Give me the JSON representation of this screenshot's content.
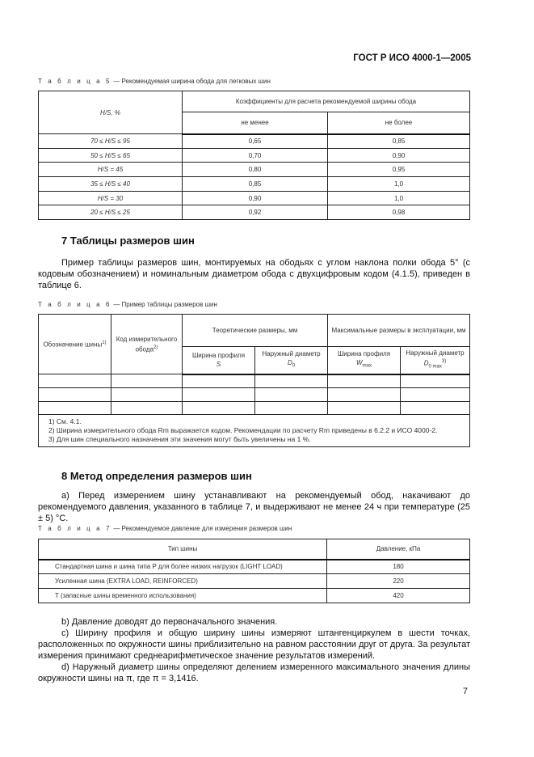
{
  "header": {
    "doc_id": "ГОСТ Р ИСО 4000-1—2005"
  },
  "table5": {
    "caption_label": "Т а б л и ц а  5",
    "caption_text": " — Рекомендуемая ширина обода для легковых шин",
    "col1": "H/S, %",
    "group": "Коэффициенты для расчета рекомендуемой ширины обода",
    "col2": "не менее",
    "col3": "не более",
    "rows": [
      [
        "70 ≤ H/S ≤ 95",
        "0,65",
        "0,85"
      ],
      [
        "50 ≤ H/S ≤ 65",
        "0,70",
        "0,90"
      ],
      [
        "H/S = 45",
        "0,80",
        "0,95"
      ],
      [
        "35 ≤ H/S ≤ 40",
        "0,85",
        "1,0"
      ],
      [
        "H/S = 30",
        "0,90",
        "1,0"
      ],
      [
        "20 ≤ H/S ≤ 25",
        "0,92",
        "0,98"
      ]
    ]
  },
  "section7": {
    "heading": "7  Таблицы размеров шин",
    "para": "Пример таблицы размеров шин, монтируемых на ободьях с углом наклона полки обода 5° (с кодовым обозначением) и номинальным диаметром обода с двухцифровым кодом (4.1.5), приведен в таблице 6."
  },
  "table6": {
    "caption_label": "Т а б л и ц а  6",
    "caption_text": " — Пример таблицы размеров шин",
    "col1": "Обозначение шины",
    "col1_sup": "1)",
    "col2": "Код измерительного обода",
    "col2_sup": "2)",
    "group1": "Теоретические размеры, мм",
    "group2": "Максимальные размеры в эксплуатации, мм",
    "sub1": "Ширина профиля",
    "sub1_sym": "S",
    "sub2": "Наружный диаметр",
    "sub2_sym": "D",
    "sub2_sub": "0",
    "sub3": "Ширина профиля",
    "sub3_sym": "W",
    "sub3_sub": "max",
    "sub4": "Наружный диаметр",
    "sub4_sym": "D",
    "sub4_sub": "0 max",
    "sub4_sup": "3)",
    "footnotes": [
      "1) См. 4.1.",
      "2) Ширина измерительного обода Rm выражается кодом. Рекомендации по расчету Rm приведены в 6.2.2 и ИСО 4000-2.",
      "3) Для шин специального назначения эти значения могут быть увеличены на 1 %."
    ]
  },
  "section8": {
    "heading": "8  Метод определения размеров шин",
    "para_a": "a)  Перед измерением шину устанавливают на рекомендуемый обод, накачивают до рекомендуемого давления, указанного в таблице 7, и выдерживают не менее 24 ч при температуре (25 ± 5) °С.",
    "para_b": "b)  Давление доводят до первоначального значения.",
    "para_c": "c)  Ширину профиля и общую ширину шины измеряют штангенциркулем в шести точках, расположенных по окружности шины приблизительно на равном расстоянии друг от друга. За результат измерения принимают среднеарифметическое значение результатов измерений.",
    "para_d": "d)  Наружный диаметр шины определяют делением измеренного максимального значения длины окружности шины на π, где π = 3,1416."
  },
  "table7": {
    "caption_label": "Т а б л и ц а  7",
    "caption_text": " — Рекомендуемое давление для измерения размеров шин",
    "col1": "Тип шины",
    "col2": "Давление, кПа",
    "rows": [
      [
        "Стандартная шина и шина типа P для более низких нагрузок (LIGHT LOAD)",
        "180"
      ],
      [
        "Усиленная шина (EXTRA LOAD, REINFORCED)",
        "220"
      ],
      [
        "T (запасные шины временного использования)",
        "420"
      ]
    ]
  },
  "page_number": "7"
}
